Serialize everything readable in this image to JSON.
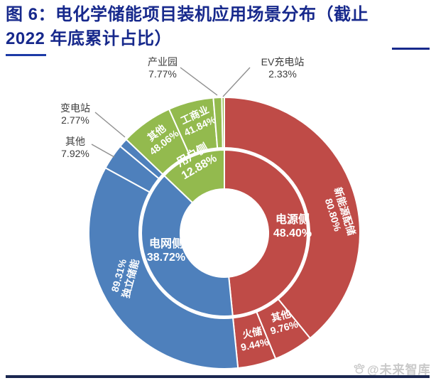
{
  "header": {
    "title_line1": "图 6：电化学储能项目装机应用场景分布（截止",
    "title_line2": "2022 年底累计占比）",
    "title_color": "#17298C"
  },
  "watermark": {
    "text": "@未来智库"
  },
  "chart_data": {
    "type": "pie",
    "subtype": "sunburst-donut",
    "title": "电化学储能项目装机应用场景分布（截止2022年底累计占比）",
    "units": "percent",
    "legend_position": "none",
    "inner_ring": [
      {
        "name": "电源侧",
        "value": 48.4,
        "pct": "48.40%",
        "color": "#BF4B47"
      },
      {
        "name": "电网侧",
        "value": 38.72,
        "pct": "38.72%",
        "color": "#4E80BC"
      },
      {
        "name": "用户侧",
        "value": 12.88,
        "pct": "12.88%",
        "color": "#93BA4E"
      }
    ],
    "outer_ring": [
      {
        "parent": "电源侧",
        "name": "新能源配储",
        "value": 80.8,
        "pct": "80.80%"
      },
      {
        "parent": "电源侧",
        "name": "其他",
        "value": 9.76,
        "pct": "9.76%"
      },
      {
        "parent": "电源侧",
        "name": "火储",
        "value": 9.44,
        "pct": "9.44%"
      },
      {
        "parent": "电网侧",
        "name": "独立储能",
        "value": 89.31,
        "pct": "89.31%"
      },
      {
        "parent": "电网侧",
        "name": "其他",
        "value": 7.92,
        "pct": "7.92%"
      },
      {
        "parent": "电网侧",
        "name": "变电站",
        "value": 2.77,
        "pct": "2.77%"
      },
      {
        "parent": "用户侧",
        "name": "其他",
        "value": 48.06,
        "pct": "48.06%"
      },
      {
        "parent": "用户侧",
        "name": "工商业",
        "value": 41.84,
        "pct": "41.84%"
      },
      {
        "parent": "用户侧",
        "name": "产业园",
        "value": 7.77,
        "pct": "7.77%"
      },
      {
        "parent": "用户侧",
        "name": "EV充电站",
        "value": 2.33,
        "pct": "2.33%"
      }
    ]
  }
}
